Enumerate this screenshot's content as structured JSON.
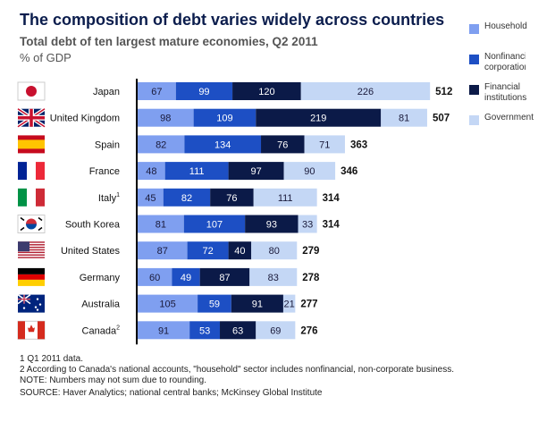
{
  "chart_data": {
    "type": "bar",
    "orientation": "horizontal",
    "stacked": true,
    "title": "The composition of debt varies widely across countries",
    "subtitle": "Total debt of ten largest mature economies, Q2 2011",
    "unit": "% of GDP",
    "categories": [
      "Japan",
      "United Kingdom",
      "Spain",
      "France",
      "Italy",
      "South Korea",
      "United States",
      "Germany",
      "Australia",
      "Canada"
    ],
    "category_superscripts": [
      "",
      "",
      "",
      "",
      "1",
      "",
      "",
      "",
      "",
      "2"
    ],
    "series": [
      {
        "name": "Household",
        "color": "#7f9ff0",
        "text_color": "#1a1a3a",
        "values": [
          67,
          98,
          82,
          48,
          45,
          81,
          87,
          60,
          105,
          91
        ]
      },
      {
        "name": "Nonfinancial corporations",
        "color": "#1d4fc4",
        "text_color": "#ffffff",
        "values": [
          99,
          109,
          134,
          111,
          82,
          107,
          72,
          49,
          59,
          53
        ]
      },
      {
        "name": "Financial institutions",
        "color": "#0b1a48",
        "text_color": "#ffffff",
        "values": [
          120,
          219,
          76,
          97,
          76,
          93,
          40,
          87,
          91,
          63
        ]
      },
      {
        "name": "Government",
        "color": "#c4d7f5",
        "text_color": "#1a1a3a",
        "values": [
          226,
          81,
          71,
          90,
          111,
          33,
          80,
          83,
          21,
          69
        ]
      }
    ],
    "totals": [
      512,
      507,
      363,
      346,
      314,
      314,
      279,
      278,
      277,
      276
    ],
    "legend_position": "top-right",
    "grid": false
  },
  "footnotes": [
    "1  Q1 2011 data.",
    "2  According to Canada's national accounts, \"household\" sector includes nonfinancial, non-corporate business.",
    "NOTE: Numbers may not sum due to rounding."
  ],
  "source": "SOURCE: Haver Analytics; national central banks; McKinsey Global Institute"
}
